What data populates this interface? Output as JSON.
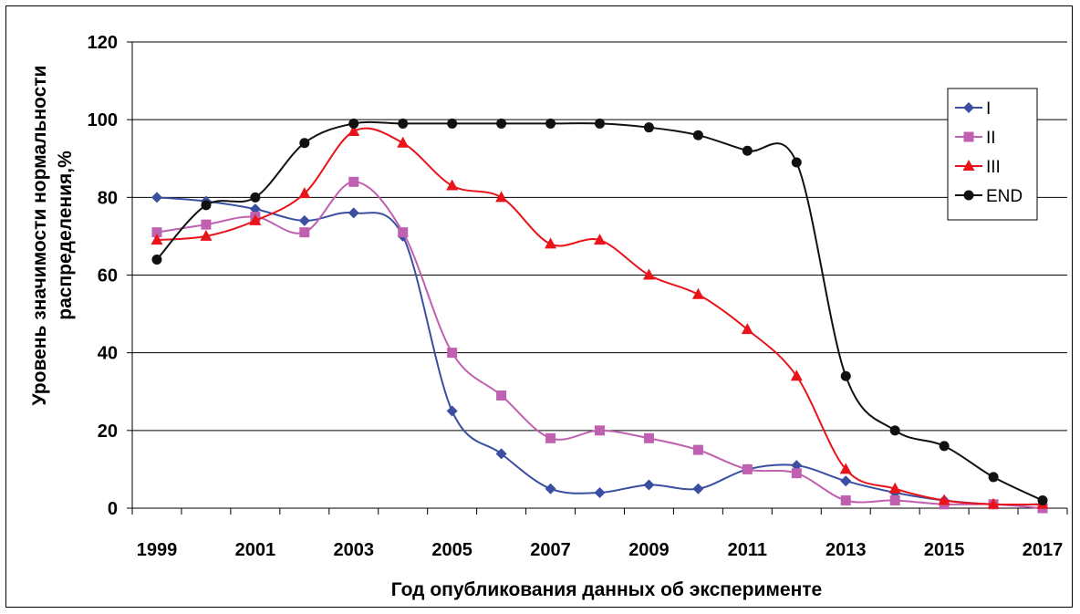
{
  "chart_data": {
    "type": "line",
    "title": "",
    "xlabel": "Год опубликования данных об эксперименте",
    "ylabel_lines": [
      "Уровень значимости нормальности",
      "распределения,%"
    ],
    "x_ticks": [
      "1999",
      "2001",
      "2003",
      "2005",
      "2007",
      "2009",
      "2011",
      "2013",
      "2015",
      "2017"
    ],
    "y_ticks": [
      "0",
      "20",
      "40",
      "60",
      "80",
      "100",
      "120"
    ],
    "ylim": [
      0,
      120
    ],
    "xlim": [
      1998.5,
      2017.5
    ],
    "grid": "horizontal",
    "legend_position": "right",
    "x": [
      1999,
      2000,
      2001,
      2002,
      2003,
      2004,
      2005,
      2006,
      2007,
      2008,
      2009,
      2010,
      2011,
      2012,
      2013,
      2014,
      2015,
      2016,
      2017
    ],
    "series": [
      {
        "name": "I",
        "color": "#3a4fa0",
        "marker": "diamond",
        "values": [
          80,
          79,
          77,
          74,
          76,
          70,
          25,
          14,
          5,
          4,
          6,
          5,
          10,
          11,
          7,
          4,
          2,
          1,
          1
        ]
      },
      {
        "name": "II",
        "color": "#c060b0",
        "marker": "square",
        "values": [
          71,
          73,
          75,
          71,
          84,
          71,
          40,
          29,
          18,
          20,
          18,
          15,
          10,
          9,
          2,
          2,
          1,
          1,
          0
        ]
      },
      {
        "name": "III",
        "color": "#e8141a",
        "marker": "triangle",
        "values": [
          69,
          70,
          74,
          81,
          97,
          94,
          83,
          80,
          68,
          69,
          60,
          55,
          46,
          34,
          10,
          5,
          2,
          1,
          1
        ]
      },
      {
        "name": "END",
        "color": "#111111",
        "marker": "circle",
        "values": [
          64,
          78,
          80,
          94,
          99,
          99,
          99,
          99,
          99,
          99,
          98,
          96,
          92,
          89,
          34,
          20,
          16,
          8,
          2
        ]
      }
    ]
  }
}
